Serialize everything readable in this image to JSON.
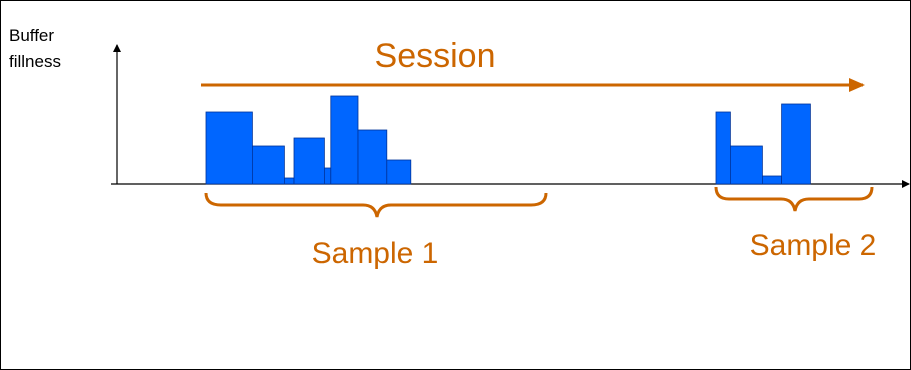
{
  "labels": {
    "y_axis_line1": "Buffer",
    "y_axis_line2": "fillness",
    "session": "Session",
    "sample1": "Sample 1",
    "sample2": "Sample 2"
  },
  "colors": {
    "accent": "#CC6600",
    "bar_fill": "#0066FF",
    "bar_stroke": "#003399",
    "axis": "#000000"
  },
  "sample1_steps": [
    {
      "duration": 2.9,
      "level": 3.6
    },
    {
      "duration": 2.0,
      "level": 1.9
    },
    {
      "duration": 0.6,
      "level": 0.3
    },
    {
      "duration": 1.9,
      "level": 2.3
    },
    {
      "duration": 0.4,
      "level": 0.8
    },
    {
      "duration": 1.7,
      "level": 4.4
    },
    {
      "duration": 1.8,
      "level": 2.7
    },
    {
      "duration": 1.5,
      "level": 1.2
    }
  ],
  "sample2_steps": [
    {
      "duration": 0.9,
      "level": 3.6
    },
    {
      "duration": 2.0,
      "level": 1.9
    },
    {
      "duration": 1.2,
      "level": 0.4
    },
    {
      "duration": 1.8,
      "level": 4.0
    }
  ]
}
